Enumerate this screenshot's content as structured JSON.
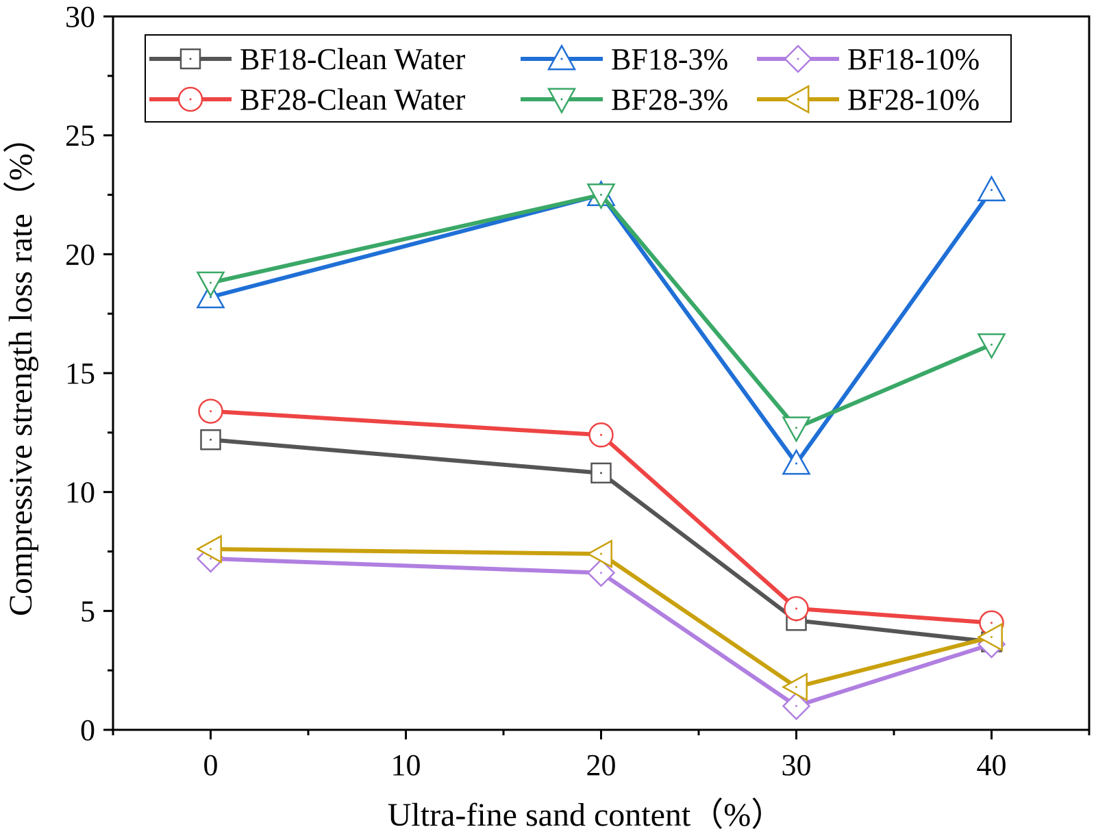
{
  "chart_data": {
    "type": "line",
    "title": "",
    "xlabel": "Ultra-fine sand content（%）",
    "ylabel": "Compressive strength loss rate（%）",
    "x": [
      0,
      20,
      30,
      40
    ],
    "xlim": [
      -5,
      45
    ],
    "ylim": [
      0,
      30
    ],
    "xticks": [
      "0",
      "10",
      "20",
      "30",
      "40"
    ],
    "xtick_values": [
      0,
      10,
      20,
      30,
      40
    ],
    "yticks": [
      "0",
      "5",
      "10",
      "15",
      "20",
      "25",
      "30"
    ],
    "ytick_values": [
      0,
      5,
      10,
      15,
      20,
      25,
      30
    ],
    "grid": false,
    "legend_position": "top",
    "series": [
      {
        "name": "BF18-Clean Water",
        "color": "#555555",
        "marker": "square",
        "values": [
          12.2,
          10.8,
          4.6,
          3.7
        ]
      },
      {
        "name": "BF18-3%",
        "color": "#1f6fd6",
        "marker": "triangle-up",
        "values": [
          18.2,
          22.5,
          11.2,
          22.7
        ]
      },
      {
        "name": "BF18-10%",
        "color": "#b07fe0",
        "marker": "diamond",
        "values": [
          7.2,
          6.6,
          1.0,
          3.6
        ]
      },
      {
        "name": "BF28-Clean Water",
        "color": "#ee4444",
        "marker": "circle",
        "values": [
          13.4,
          12.4,
          5.1,
          4.5
        ]
      },
      {
        "name": "BF28-3%",
        "color": "#3aa867",
        "marker": "triangle-down",
        "values": [
          18.8,
          22.5,
          12.7,
          16.2
        ]
      },
      {
        "name": "BF28-10%",
        "color": "#c9a10e",
        "marker": "triangle-left",
        "values": [
          7.6,
          7.4,
          1.8,
          3.9
        ]
      }
    ]
  }
}
